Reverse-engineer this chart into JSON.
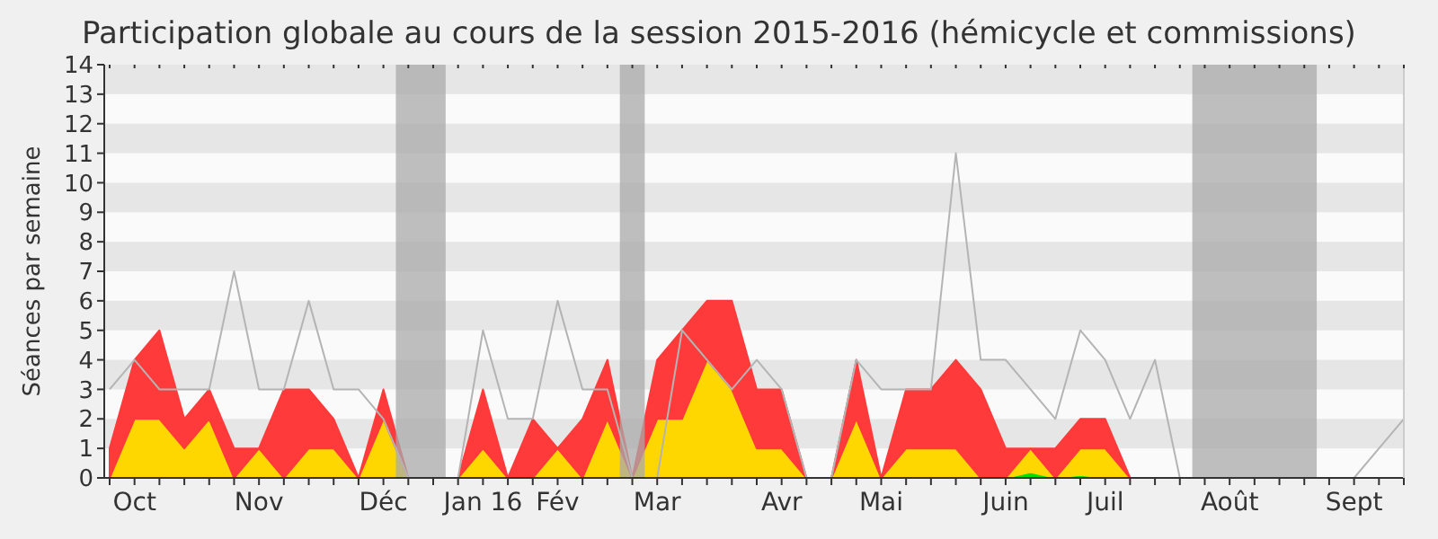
{
  "chart_data": {
    "type": "area",
    "title": "Participation globale au cours de la session 2015-2016 (hémicycle et commissions)",
    "ylabel": "Séances par semaine",
    "stacked": true,
    "categories": [
      null,
      "Oct",
      null,
      null,
      null,
      null,
      "Nov",
      null,
      null,
      null,
      null,
      "Déc",
      null,
      null,
      null,
      "Jan 16",
      null,
      null,
      "Fév",
      null,
      null,
      null,
      "Mar",
      null,
      null,
      null,
      null,
      "Avr",
      null,
      null,
      null,
      "Mai",
      null,
      null,
      null,
      null,
      "Juin",
      null,
      null,
      null,
      "Juil",
      null,
      null,
      null,
      null,
      "Août",
      null,
      null,
      null,
      null,
      "Sept",
      null,
      null
    ],
    "ylim": [
      0,
      14
    ],
    "yticks": [
      0,
      1,
      2,
      3,
      4,
      5,
      6,
      7,
      8,
      9,
      10,
      11,
      12,
      13,
      14
    ],
    "series": [
      {
        "color": "#00e000",
        "values": [
          0,
          0,
          0,
          0,
          0,
          0,
          0,
          0,
          0,
          0,
          0,
          0,
          0,
          0,
          0,
          0,
          0,
          0,
          0,
          0,
          0,
          0,
          0,
          0,
          0,
          0,
          0,
          0,
          0,
          0,
          0,
          0,
          0,
          0,
          0,
          0,
          0,
          0.2,
          0,
          0.1,
          0,
          0,
          0,
          0,
          0,
          0,
          0,
          0,
          0,
          0,
          0,
          0,
          0
        ]
      },
      {
        "color": "#ffd700",
        "values": [
          0,
          2,
          2,
          1,
          2,
          0,
          1,
          0,
          1,
          1,
          0,
          2,
          0,
          0,
          0,
          1,
          0,
          0,
          1,
          0,
          2,
          0,
          2,
          2,
          4,
          3,
          1,
          1,
          0,
          0,
          2,
          0,
          1,
          1,
          1,
          0,
          0,
          0.8,
          0,
          0.9,
          1,
          0,
          0,
          0,
          0,
          0,
          0,
          0,
          0,
          0,
          0,
          0,
          0
        ]
      },
      {
        "color": "#ff3a3a",
        "values": [
          1,
          2,
          3,
          1,
          1,
          1,
          0,
          3,
          2,
          1,
          0,
          1,
          0,
          0,
          0,
          2,
          0,
          2,
          0,
          2,
          2,
          0,
          2,
          3,
          2,
          3,
          2,
          2,
          0,
          0,
          2,
          0,
          2,
          2,
          3,
          3,
          1,
          0,
          1,
          1,
          1,
          0,
          0,
          0,
          0,
          0,
          0,
          0,
          0,
          0,
          0,
          0,
          0
        ]
      },
      {
        "type": "line",
        "color": "#b4b4b4",
        "values": [
          3,
          4,
          3,
          3,
          3,
          7,
          3,
          3,
          6,
          3,
          3,
          2,
          0,
          0,
          0,
          5,
          2,
          2,
          6,
          3,
          3,
          0,
          0,
          5,
          4,
          3,
          4,
          3,
          0,
          0,
          4,
          3,
          3,
          3,
          11,
          4,
          4,
          3,
          2,
          5,
          4,
          2,
          4,
          0,
          0,
          0,
          0,
          0,
          0,
          0,
          0,
          1,
          2
        ]
      }
    ]
  }
}
